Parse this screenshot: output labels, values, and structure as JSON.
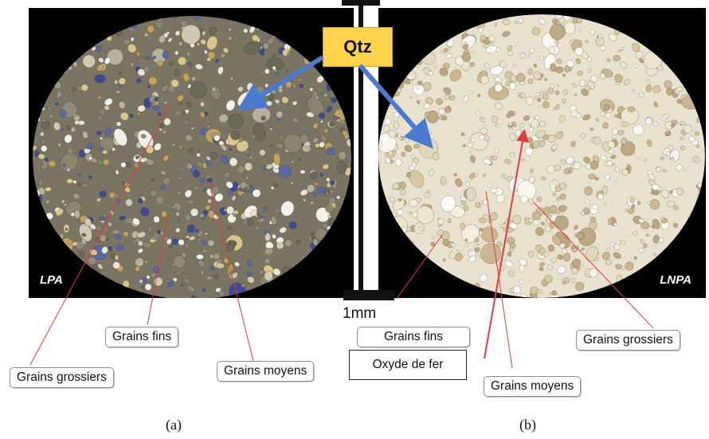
{
  "panels": {
    "left": {
      "tag": "LPA",
      "caption": "(a)"
    },
    "right": {
      "tag": "LNPA",
      "caption": "(b)"
    }
  },
  "scale_bar": {
    "label": "1mm"
  },
  "mineral_badge": {
    "label": "Qtz"
  },
  "annotations": {
    "left_fine": "Grains fins",
    "left_coarse": "Grains grossiers",
    "left_medium": "Grains moyens",
    "right_fine": "Grains fins",
    "right_iron_oxide": "Oxyde de fer",
    "right_medium": "Grains moyens",
    "right_coarse": "Grains grossiers"
  },
  "colors": {
    "arrow_blue": "#4a7bd1",
    "leader_red": "#e53a3a",
    "badge_yellow": "#ffd34e",
    "lpa_matrix": "#7a7562",
    "lnpa_matrix": "#e8e2cf"
  }
}
